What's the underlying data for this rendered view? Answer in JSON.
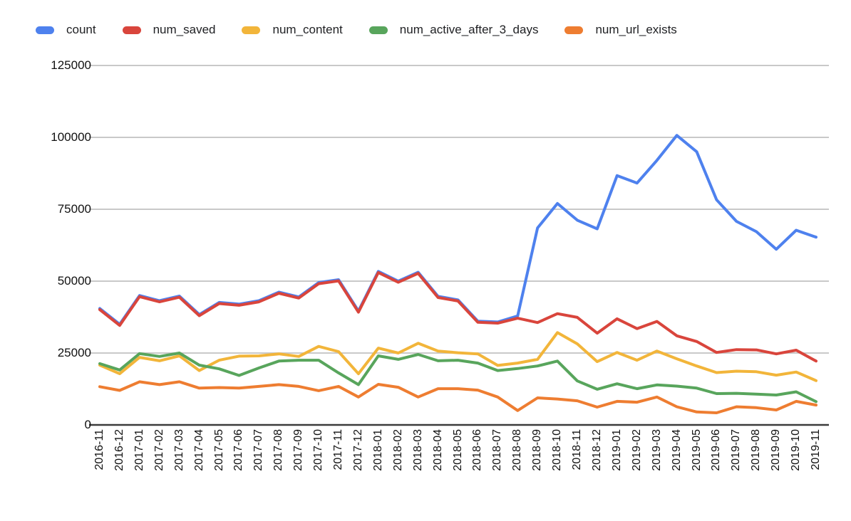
{
  "chart_data": {
    "type": "line",
    "title": "",
    "xlabel": "",
    "ylabel": "",
    "ylim": [
      0,
      125000
    ],
    "y_ticks": [
      0,
      25000,
      50000,
      75000,
      100000,
      125000
    ],
    "y_tick_labels": [
      "0",
      "25000",
      "50000",
      "75000",
      "100000",
      "125000"
    ],
    "grid": "horizontal",
    "legend_position": "top",
    "categories": [
      "2016-11",
      "2016-12",
      "2017-01",
      "2017-02",
      "2017-03",
      "2017-04",
      "2017-05",
      "2017-06",
      "2017-07",
      "2017-08",
      "2017-09",
      "2017-10",
      "2017-11",
      "2017-12",
      "2018-01",
      "2018-02",
      "2018-03",
      "2018-04",
      "2018-05",
      "2018-06",
      "2018-07",
      "2018-08",
      "2018-09",
      "2018-10",
      "2018-11",
      "2018-12",
      "2019-01",
      "2019-02",
      "2019-03",
      "2019-04",
      "2019-05",
      "2019-06",
      "2019-07",
      "2019-08",
      "2019-09",
      "2019-10",
      "2019-11"
    ],
    "series": [
      {
        "name": "count",
        "color": "#4E81EE",
        "values": [
          40500,
          35000,
          45000,
          43200,
          44800,
          38400,
          42600,
          42000,
          43200,
          46200,
          44500,
          49500,
          50500,
          39600,
          53400,
          50000,
          53100,
          44700,
          43500,
          36100,
          35800,
          37900,
          68500,
          77000,
          71200,
          68200,
          86700,
          84100,
          92000,
          100700,
          95000,
          78300,
          70800,
          67200,
          61100,
          67700,
          65300
        ]
      },
      {
        "name": "num_saved",
        "color": "#D9453C",
        "values": [
          40100,
          34600,
          44600,
          42800,
          44400,
          38000,
          42200,
          41600,
          42800,
          45800,
          44100,
          49100,
          50100,
          39200,
          53000,
          49600,
          52700,
          44300,
          43100,
          35700,
          35400,
          37100,
          35600,
          38700,
          37400,
          31900,
          36900,
          33500,
          36000,
          31000,
          29000,
          25200,
          26200,
          26100,
          24700,
          26000,
          22200
        ]
      },
      {
        "name": "num_content",
        "color": "#F2B53A",
        "values": [
          20800,
          17800,
          23500,
          22300,
          24000,
          18900,
          22500,
          23900,
          24000,
          24700,
          23800,
          27300,
          25500,
          17800,
          26700,
          25000,
          28400,
          25700,
          25100,
          24700,
          20700,
          21500,
          22800,
          32100,
          28200,
          22000,
          25200,
          22500,
          25700,
          23000,
          20500,
          18200,
          18700,
          18500,
          17300,
          18400,
          15400
        ]
      },
      {
        "name": "num_active_after_3_days",
        "color": "#58A55C",
        "values": [
          21300,
          19100,
          24800,
          23800,
          25000,
          20800,
          19500,
          17200,
          19800,
          22200,
          22500,
          22500,
          18100,
          14000,
          24000,
          22800,
          24500,
          22300,
          22500,
          21500,
          18900,
          19600,
          20500,
          22200,
          15300,
          12400,
          14300,
          12600,
          13900,
          13500,
          12800,
          10900,
          11000,
          10700,
          10400,
          11500,
          8100
        ]
      },
      {
        "name": "num_url_exists",
        "color": "#EE7D31",
        "values": [
          13300,
          12000,
          15000,
          14000,
          15000,
          12800,
          13000,
          12800,
          13400,
          14000,
          13400,
          11900,
          13400,
          9700,
          14100,
          13100,
          9700,
          12600,
          12600,
          12100,
          9700,
          5000,
          9400,
          9000,
          8400,
          6200,
          8200,
          7900,
          9700,
          6300,
          4500,
          4200,
          6300,
          6000,
          5200,
          8200,
          6900
        ]
      }
    ],
    "style": {
      "gridline_color": "#c9c9c9",
      "axis_color": "#3b3b3b",
      "line_width": 4
    }
  }
}
